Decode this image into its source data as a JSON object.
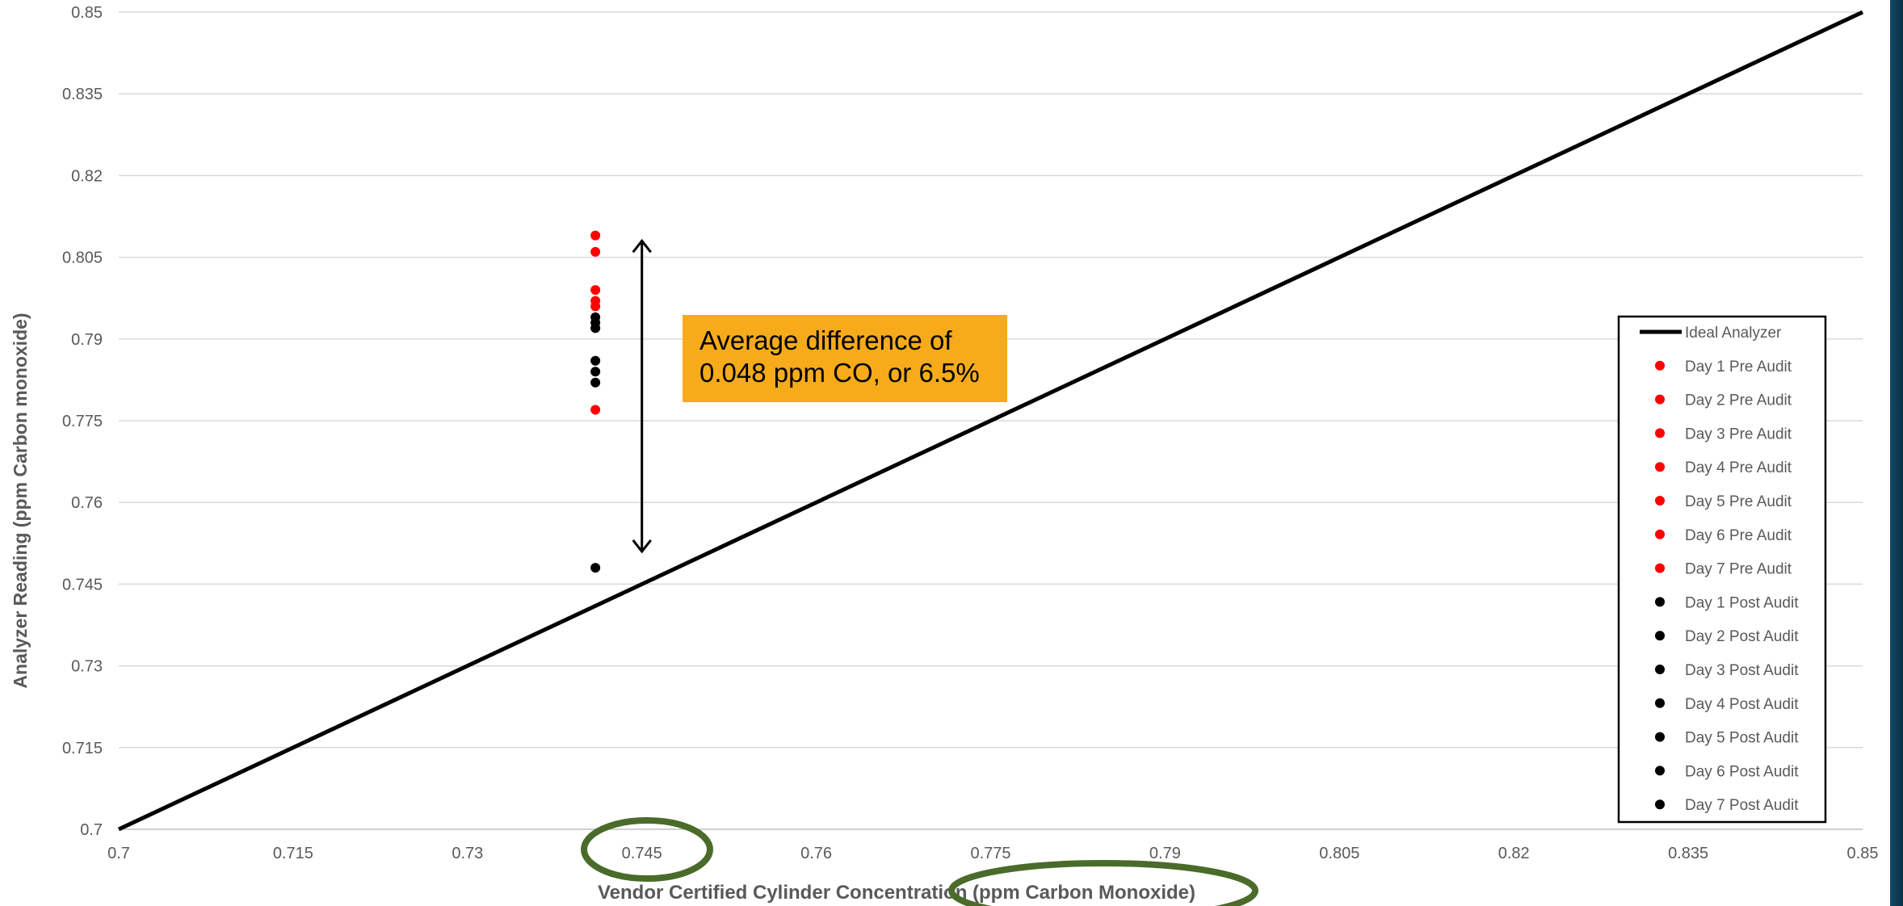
{
  "chart_data": {
    "type": "scatter",
    "xlabel": "Vendor Certified Cylinder Concentration (ppm  Carbon Monoxide)",
    "ylabel": "Analyzer Reading (ppm Carbon monoxide)",
    "xlim": [
      0.7,
      0.85
    ],
    "ylim": [
      0.7,
      0.85
    ],
    "x_ticks": [
      "0.7",
      "0.715",
      "0.73",
      "0.745",
      "0.76",
      "0.775",
      "0.79",
      "0.805",
      "0.82",
      "0.835",
      "0.85"
    ],
    "y_ticks": [
      "0.7",
      "0.715",
      "0.73",
      "0.745",
      "0.76",
      "0.775",
      "0.79",
      "0.805",
      "0.82",
      "0.835",
      "0.85"
    ],
    "grid": "horizontal",
    "legend_position": "right",
    "line_series": {
      "name": "Ideal Analyzer",
      "color": "#000000",
      "points": [
        [
          0.7,
          0.7
        ],
        [
          0.85,
          0.85
        ]
      ]
    },
    "series": [
      {
        "name": "Day 1 Pre Audit",
        "color": "#ff0000",
        "points": [
          [
            0.741,
            0.809
          ]
        ]
      },
      {
        "name": "Day 2 Pre Audit",
        "color": "#ff0000",
        "points": [
          [
            0.741,
            0.806
          ]
        ]
      },
      {
        "name": "Day 3 Pre Audit",
        "color": "#ff0000",
        "points": [
          [
            0.741,
            0.799
          ]
        ]
      },
      {
        "name": "Day 4 Pre Audit",
        "color": "#ff0000",
        "points": [
          [
            0.741,
            0.797
          ]
        ]
      },
      {
        "name": "Day 5 Pre Audit",
        "color": "#ff0000",
        "points": [
          [
            0.741,
            0.796
          ]
        ]
      },
      {
        "name": "Day 6 Pre Audit",
        "color": "#ff0000",
        "points": [
          [
            0.741,
            0.792
          ]
        ]
      },
      {
        "name": "Day 7 Pre Audit",
        "color": "#ff0000",
        "points": [
          [
            0.741,
            0.777
          ]
        ]
      },
      {
        "name": "Day 1 Post Audit",
        "color": "#000000",
        "points": [
          [
            0.741,
            0.794
          ]
        ]
      },
      {
        "name": "Day 2 Post Audit",
        "color": "#000000",
        "points": [
          [
            0.741,
            0.793
          ]
        ]
      },
      {
        "name": "Day 3 Post Audit",
        "color": "#000000",
        "points": [
          [
            0.741,
            0.792
          ]
        ]
      },
      {
        "name": "Day 4 Post Audit",
        "color": "#000000",
        "points": [
          [
            0.741,
            0.786
          ]
        ]
      },
      {
        "name": "Day 5 Post Audit",
        "color": "#000000",
        "points": [
          [
            0.741,
            0.784
          ]
        ]
      },
      {
        "name": "Day 6 Post Audit",
        "color": "#000000",
        "points": [
          [
            0.741,
            0.782
          ]
        ]
      },
      {
        "name": "Day 7 Post Audit",
        "color": "#000000",
        "points": [
          [
            0.741,
            0.748
          ]
        ]
      }
    ],
    "annotations": [
      {
        "text": "Average difference of\n0.048 ppm CO, or 6.5%",
        "background": "#f7ab1b",
        "arrow_x": 0.745,
        "arrow_y": [
          0.808,
          0.751
        ]
      }
    ],
    "highlight_color": "#4a6b2a",
    "highlights": [
      "x tick 0.745",
      "x-axis unit (ppm  Carbon  Monoxide)"
    ]
  }
}
